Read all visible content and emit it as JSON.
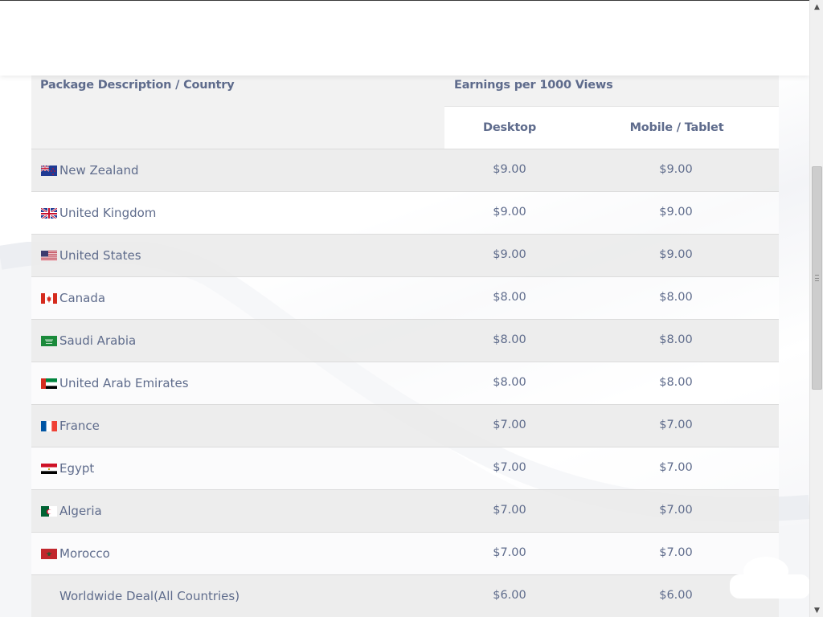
{
  "table": {
    "header_package": "Package Description / Country",
    "header_earnings": "Earnings per 1000 Views",
    "header_desktop": "Desktop",
    "header_mobile": "Mobile / Tablet",
    "rows": [
      {
        "country": "New Zealand",
        "flag": "new-zealand-flag",
        "desktop": "$9.00",
        "mobile": "$9.00"
      },
      {
        "country": "United Kingdom",
        "flag": "united-kingdom-flag",
        "desktop": "$9.00",
        "mobile": "$9.00"
      },
      {
        "country": "United States",
        "flag": "united-states-flag",
        "desktop": "$9.00",
        "mobile": "$9.00"
      },
      {
        "country": "Canada",
        "flag": "canada-flag",
        "desktop": "$8.00",
        "mobile": "$8.00"
      },
      {
        "country": "Saudi Arabia",
        "flag": "saudi-arabia-flag",
        "desktop": "$8.00",
        "mobile": "$8.00"
      },
      {
        "country": "United Arab Emirates",
        "flag": "uae-flag",
        "desktop": "$8.00",
        "mobile": "$8.00"
      },
      {
        "country": "France",
        "flag": "france-flag",
        "desktop": "$7.00",
        "mobile": "$7.00"
      },
      {
        "country": "Egypt",
        "flag": "egypt-flag",
        "desktop": "$7.00",
        "mobile": "$7.00"
      },
      {
        "country": "Algeria",
        "flag": "algeria-flag",
        "desktop": "$7.00",
        "mobile": "$7.00"
      },
      {
        "country": "Morocco",
        "flag": "morocco-flag",
        "desktop": "$7.00",
        "mobile": "$7.00"
      },
      {
        "country": "Worldwide Deal(All Countries)",
        "flag": "",
        "desktop": "$6.00",
        "mobile": "$6.00"
      }
    ]
  },
  "colors": {
    "text": "#5f6c8c",
    "header_bg": "#f2f2f2",
    "row_alt_bg": "#ececec"
  }
}
